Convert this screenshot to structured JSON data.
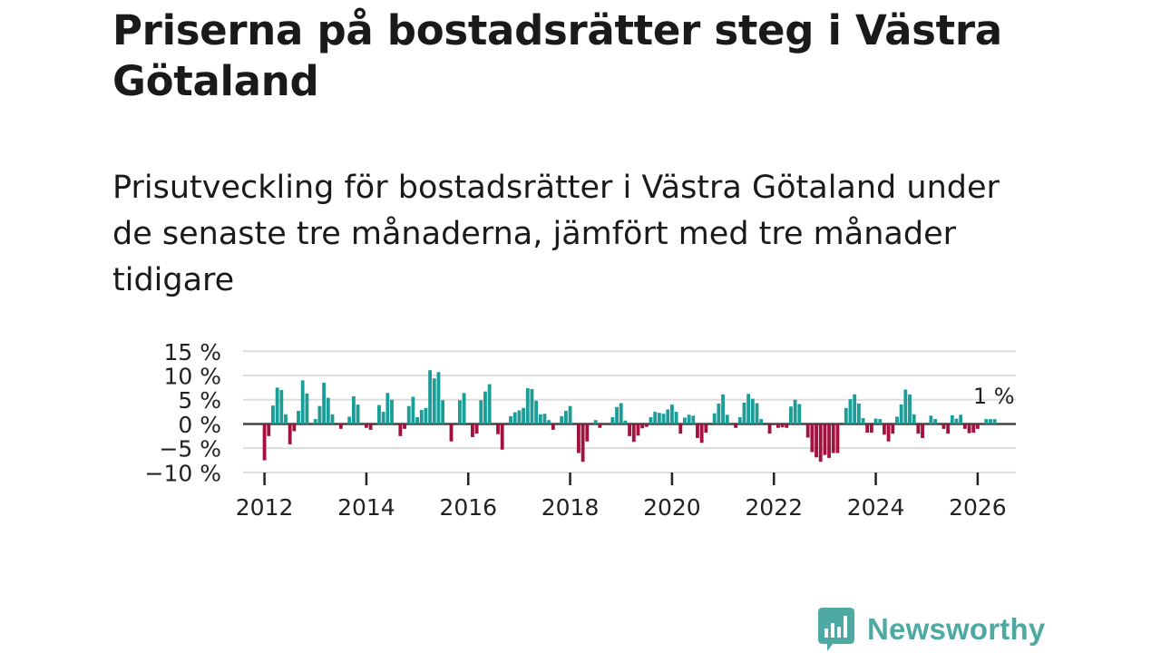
{
  "title": "Priserna på bostadsrätter steg i Västra Götaland",
  "subtitle": "Prisutveckling för bostadsrätter i Västra Götaland under de senaste tre månaderna, jämfört med tre månader tidigare",
  "brand": "Newsworthy",
  "colors": {
    "positive": "#1b9e98",
    "negative": "#a3123f",
    "grid": "#dddddd",
    "zero_line": "#444444",
    "brand": "#4fa9a3"
  },
  "chart_data": {
    "type": "bar",
    "title": "Priserna på bostadsrätter steg i Västra Götaland",
    "subtitle": "Prisutveckling för bostadsrätter i Västra Götaland under de senaste tre månaderna, jämfört med tre månader tidigare",
    "xlabel": "",
    "ylabel": "",
    "unit": "%",
    "ylim": [
      -10,
      15
    ],
    "y_ticks": [
      {
        "value": 15,
        "label": "15 %"
      },
      {
        "value": 10,
        "label": "10 %"
      },
      {
        "value": 5,
        "label": "5 %"
      },
      {
        "value": 0,
        "label": "0 %"
      },
      {
        "value": -5,
        "label": "−5 %"
      },
      {
        "value": -10,
        "label": "−10 %"
      }
    ],
    "x_range": [
      2011.58,
      2026.75
    ],
    "x_ticks": [
      2012,
      2014,
      2016,
      2018,
      2020,
      2022,
      2024,
      2026
    ],
    "start": "2012-01",
    "frequency": "monthly",
    "last_label": "1 %",
    "values": [
      -7.5,
      -2.5,
      3.8,
      7.5,
      7.0,
      2.0,
      -4.2,
      -1.5,
      2.7,
      9.0,
      6.3,
      0,
      1.0,
      3.7,
      8.5,
      5.4,
      2.0,
      0,
      -1.0,
      0,
      1.5,
      5.7,
      4.0,
      0,
      -0.8,
      -1.2,
      0,
      3.9,
      2.5,
      6.4,
      5.0,
      0,
      -2.5,
      -1.0,
      3.7,
      5.6,
      1.4,
      2.9,
      3.3,
      11.1,
      9.4,
      10.7,
      4.9,
      0,
      -3.6,
      0,
      4.9,
      6.4,
      0,
      -2.7,
      -2.0,
      4.9,
      6.7,
      8.2,
      0,
      -2.1,
      -5.3,
      0,
      1.6,
      2.4,
      2.8,
      3.3,
      7.4,
      7.2,
      4.8,
      2.0,
      2.1,
      0.8,
      -1.2,
      0,
      1.6,
      2.7,
      3.7,
      0,
      -6.0,
      -7.8,
      -3.6,
      0,
      0.8,
      -0.8,
      0,
      0,
      1.4,
      3.5,
      4.3,
      0.7,
      -2.5,
      -3.7,
      -2.4,
      -0.9,
      -0.6,
      1.4,
      2.5,
      2.3,
      2.1,
      3.0,
      4.0,
      2.5,
      -2.0,
      1.3,
      1.9,
      1.7,
      -2.9,
      -3.9,
      -1.8,
      0,
      2.2,
      4.2,
      6.1,
      1.9,
      0,
      -0.8,
      1.4,
      4.4,
      6.2,
      5.2,
      4.3,
      1.0,
      0,
      -2.0,
      0,
      -0.8,
      -0.7,
      -0.8,
      3.6,
      5.0,
      4.1,
      0,
      -2.8,
      -5.8,
      -6.9,
      -7.8,
      -6.4,
      -7.0,
      -6.0,
      -6.0,
      0,
      3.3,
      5.1,
      6.1,
      4.2,
      1.2,
      -1.8,
      -1.8,
      1.1,
      1.0,
      -2.2,
      -3.6,
      -2.0,
      1.5,
      4.0,
      7.1,
      6.1,
      2.0,
      -2.0,
      -2.9,
      0,
      1.7,
      1.0,
      0,
      -1.0,
      -2.0,
      1.8,
      1.1,
      1.9,
      -1.0,
      -1.9,
      -1.8,
      -1.0,
      0,
      1.0,
      1.0,
      1.0
    ]
  }
}
